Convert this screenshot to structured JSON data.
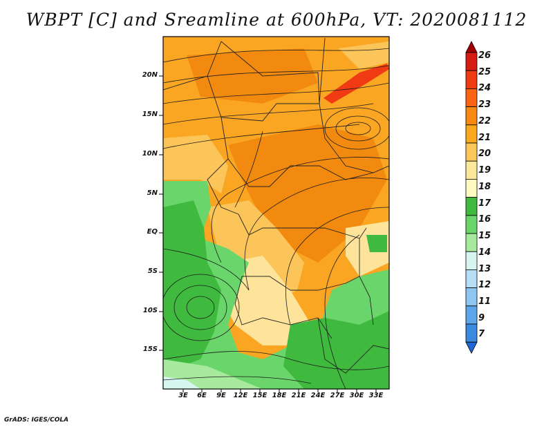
{
  "title": "WBPT [C] and Sreamline at 600hPa, VT: 2020081112",
  "credit": "GrADS: IGES/COLA",
  "lat_labels": [
    "20N",
    "15N",
    "10N",
    "5N",
    "EQ",
    "5S",
    "10S",
    "15S"
  ],
  "lon_labels": [
    "3E",
    "6E",
    "9E",
    "12E",
    "15E",
    "18E",
    "21E",
    "24E",
    "27E",
    "30E",
    "33E"
  ],
  "colorbar": {
    "labels": [
      "26",
      "25",
      "24",
      "23",
      "22",
      "21",
      "20",
      "19",
      "18",
      "17",
      "16",
      "15",
      "14",
      "13",
      "12",
      "11",
      "9",
      "7"
    ],
    "colors": [
      "#a50000",
      "#d71c12",
      "#f03a13",
      "#fa6412",
      "#f88a12",
      "#faa81e",
      "#fcc85a",
      "#fce89a",
      "#fff9c2",
      "#3fba3f",
      "#6ad56a",
      "#a7ea9e",
      "#d8f6f0",
      "#b6dcf6",
      "#8ec6f2",
      "#5ea6ea",
      "#3a8ae0",
      "#2166d6"
    ]
  },
  "field_colors": {
    "hot": "#f28a10",
    "warm": "#faa622",
    "mild": "#fcc55a",
    "pale": "#fde49a",
    "cream": "#fff9c2",
    "green_dark": "#3fba3f",
    "green": "#6ad56a",
    "green_light": "#a7ea9e",
    "red": "#f03a13",
    "cool": "#d8f6f0"
  }
}
